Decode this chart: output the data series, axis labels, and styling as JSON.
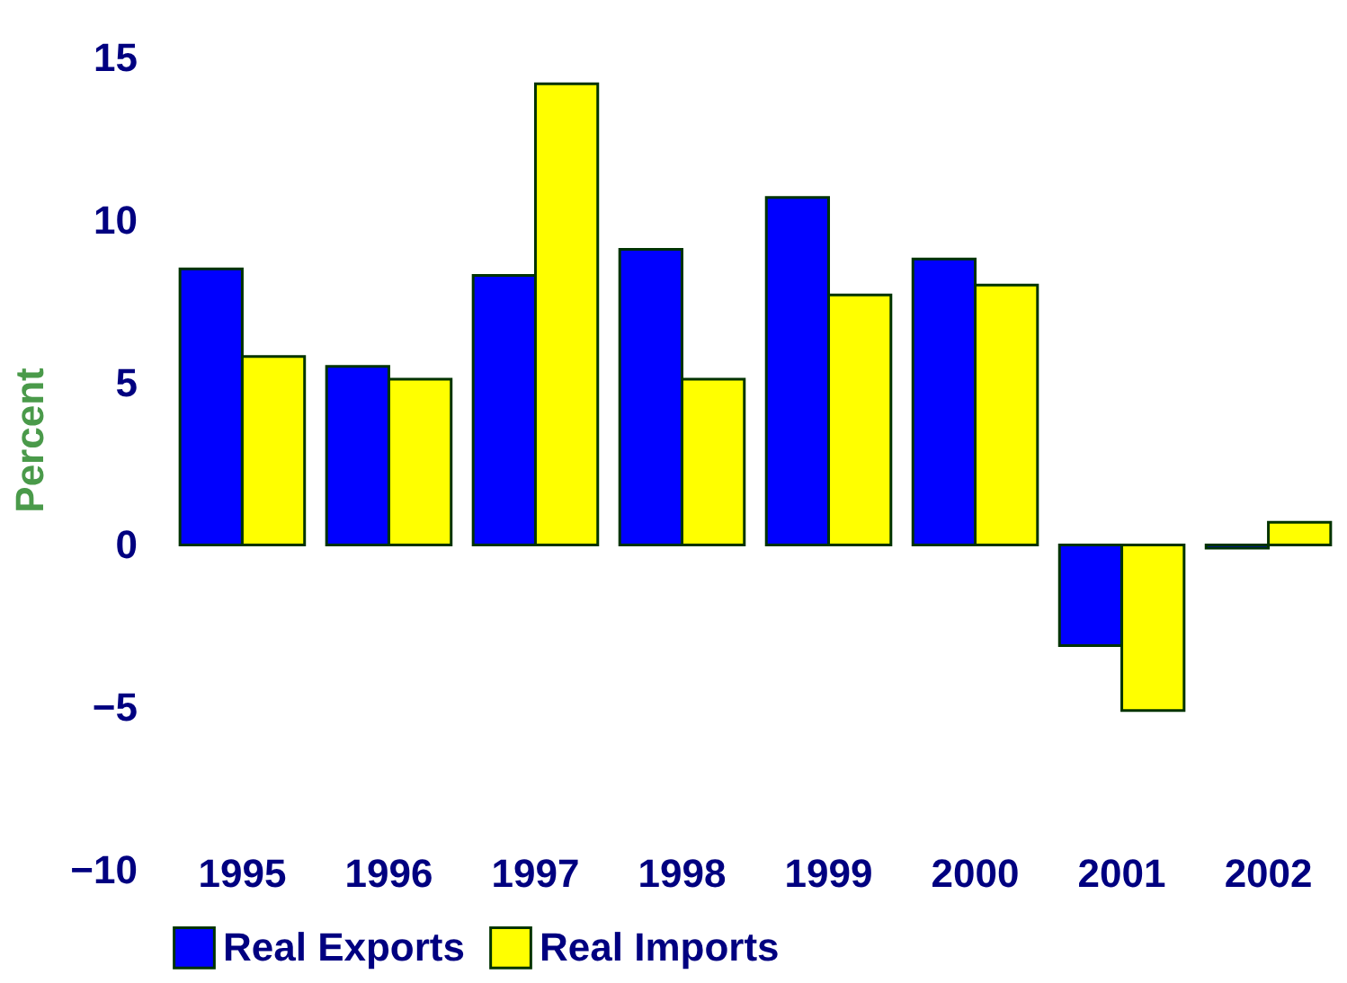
{
  "chart_data": {
    "type": "bar",
    "ylabel": "Percent",
    "categories": [
      "1995",
      "1996",
      "1997",
      "1998",
      "1999",
      "2000",
      "2001",
      "2002"
    ],
    "series": [
      {
        "name": "Real Exports",
        "color": "#0000ff",
        "values": [
          8.5,
          5.5,
          8.3,
          9.1,
          10.7,
          8.8,
          -3.1,
          -0.1
        ]
      },
      {
        "name": "Real Imports",
        "color": "#ffff00",
        "values": [
          5.8,
          5.1,
          14.2,
          5.1,
          7.7,
          8.0,
          -5.1,
          0.7
        ]
      }
    ],
    "ylim": [
      -10,
      16.5
    ],
    "yticks": [
      -10,
      -5,
      0,
      5,
      10,
      15
    ],
    "grid": false,
    "legend": "bottom"
  }
}
